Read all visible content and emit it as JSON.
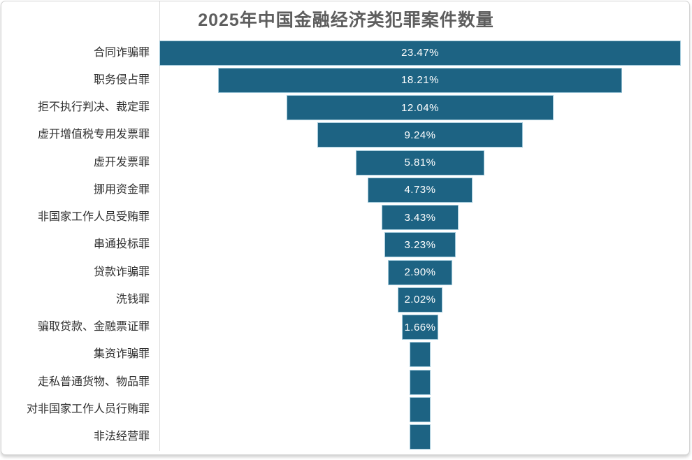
{
  "header": {
    "title": "2025年中国金融经济类犯罪案件数量"
  },
  "colors": {
    "bar_fill": "#1d6383",
    "bar_border": "#a3cadb",
    "bar_text": "#ffffff",
    "title_text": "#5e5e5e",
    "label_text": "#2f2f2f",
    "card_border": "#d3d3d3",
    "divider": "#dcdcdc"
  },
  "chart_data": {
    "type": "bar",
    "subtype": "funnel-centered-horizontal",
    "title": "2025年中国金融经济类犯罪案件数量",
    "unit": "%",
    "legend": "none",
    "grid": "off",
    "xlim_pct": [
      0,
      23.47
    ],
    "categories": [
      "合同诈骗罪",
      "职务侵占罪",
      "拒不执行判决、裁定罪",
      "虚开增值税专用发票罪",
      "虚开发票罪",
      "挪用资金罪",
      "非国家工作人员受贿罪",
      "串通投标罪",
      "贷款诈骗罪",
      "洗钱罪",
      "骗取贷款、金融票证罪",
      "集资诈骗罪",
      "走私普通货物、物品罪",
      "对非国家工作人员行贿罪",
      "非法经营罪"
    ],
    "items": [
      {
        "category": "合同诈骗罪",
        "value_pct": 23.47,
        "label": "23.47%"
      },
      {
        "category": "职务侵占罪",
        "value_pct": 18.21,
        "label": "18.21%"
      },
      {
        "category": "拒不执行判决、裁定罪",
        "value_pct": 12.04,
        "label": "12.04%"
      },
      {
        "category": "虚开增值税专用发票罪",
        "value_pct": 9.24,
        "label": "9.24%"
      },
      {
        "category": "虚开发票罪",
        "value_pct": 5.81,
        "label": "5.81%"
      },
      {
        "category": "挪用资金罪",
        "value_pct": 4.73,
        "label": "4.73%"
      },
      {
        "category": "非国家工作人员受贿罪",
        "value_pct": 3.43,
        "label": "3.43%"
      },
      {
        "category": "串通投标罪",
        "value_pct": 3.23,
        "label": "3.23%"
      },
      {
        "category": "贷款诈骗罪",
        "value_pct": 2.9,
        "label": "2.90%"
      },
      {
        "category": "洗钱罪",
        "value_pct": 2.02,
        "label": "2.02%"
      },
      {
        "category": "骗取贷款、金融票证罪",
        "value_pct": 1.66,
        "label": "1.66%"
      },
      {
        "category": "集资诈骗罪",
        "value_pct": 0.97,
        "label": ""
      },
      {
        "category": "走私普通货物、物品罪",
        "value_pct": 0.97,
        "label": ""
      },
      {
        "category": "对非国家工作人员行贿罪",
        "value_pct": 0.97,
        "label": ""
      },
      {
        "category": "非法经营罪",
        "value_pct": 0.97,
        "label": ""
      }
    ]
  }
}
